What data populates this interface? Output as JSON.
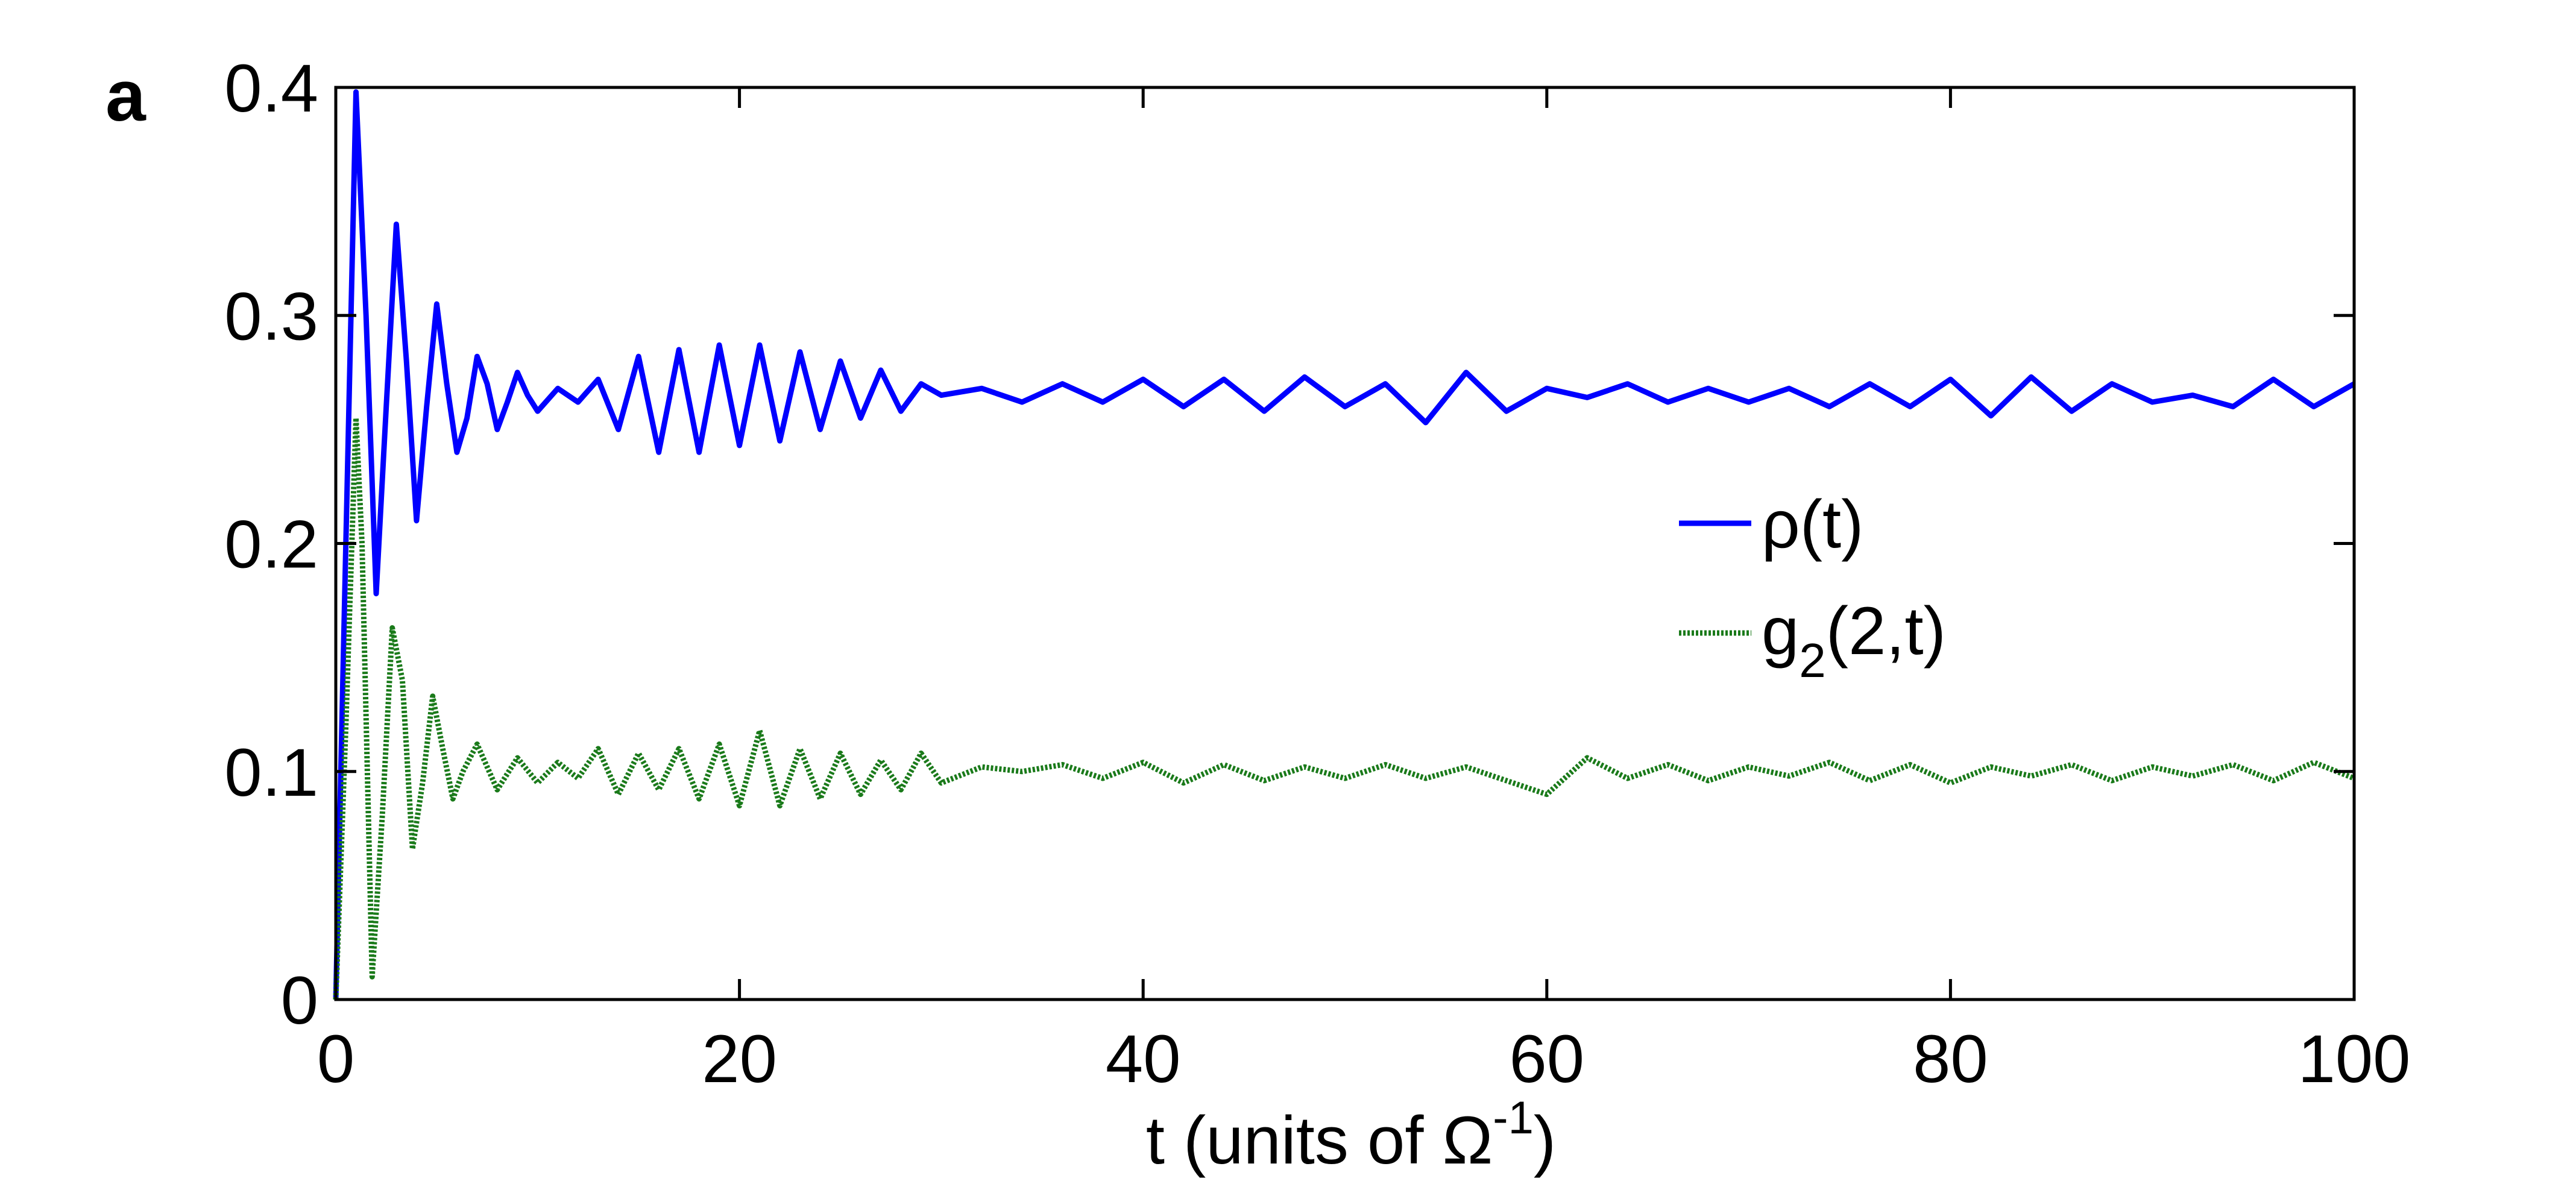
{
  "chart_data": {
    "type": "line",
    "panel_label": "a",
    "title": "",
    "xlabel": "t (units of Ω",
    "xlabel_sup": "-1",
    "xlabel_close": ")",
    "ylabel": "",
    "xlim": [
      0,
      100
    ],
    "ylim": [
      0,
      0.4
    ],
    "xticks": [
      0,
      20,
      40,
      60,
      80,
      100
    ],
    "xtick_labels": [
      "0",
      "20",
      "40",
      "60",
      "80",
      "100"
    ],
    "yticks": [
      0,
      0.1,
      0.2,
      0.3,
      0.4
    ],
    "ytick_labels": [
      "0",
      "0.1",
      "0.2",
      "0.3",
      "0.4"
    ],
    "grid": false,
    "legend_position": "right-center",
    "series": [
      {
        "name": "ρ(t)",
        "color": "#0000ff",
        "style": "solid",
        "x": [
          0,
          0.5,
          1.0,
          1.5,
          2.0,
          2.5,
          3.0,
          3.5,
          4.0,
          4.5,
          5.0,
          5.5,
          6.0,
          6.5,
          7.0,
          7.5,
          8.0,
          8.5,
          9.0,
          9.5,
          10,
          11,
          12,
          13,
          14,
          15,
          16,
          17,
          18,
          19,
          20,
          21,
          22,
          23,
          24,
          25,
          26,
          27,
          28,
          29,
          30,
          32,
          34,
          36,
          38,
          40,
          42,
          44,
          46,
          48,
          50,
          52,
          54,
          56,
          58,
          60,
          62,
          64,
          66,
          68,
          70,
          72,
          74,
          76,
          78,
          80,
          82,
          84,
          86,
          88,
          90,
          92,
          94,
          96,
          98,
          100
        ],
        "y": [
          0,
          0.2,
          0.398,
          0.3,
          0.178,
          0.26,
          0.34,
          0.28,
          0.21,
          0.26,
          0.305,
          0.27,
          0.24,
          0.255,
          0.282,
          0.27,
          0.25,
          0.262,
          0.275,
          0.265,
          0.258,
          0.268,
          0.262,
          0.272,
          0.25,
          0.282,
          0.24,
          0.285,
          0.24,
          0.287,
          0.243,
          0.287,
          0.245,
          0.284,
          0.25,
          0.28,
          0.255,
          0.276,
          0.258,
          0.27,
          0.265,
          0.268,
          0.262,
          0.27,
          0.262,
          0.272,
          0.26,
          0.272,
          0.258,
          0.273,
          0.26,
          0.27,
          0.253,
          0.275,
          0.258,
          0.268,
          0.264,
          0.27,
          0.262,
          0.268,
          0.262,
          0.268,
          0.26,
          0.27,
          0.26,
          0.272,
          0.256,
          0.273,
          0.258,
          0.27,
          0.262,
          0.265,
          0.26,
          0.272,
          0.26,
          0.27
        ]
      },
      {
        "name": "g",
        "name_sub": "2",
        "name_rest": "(2,t)",
        "color": "#1a7a1a",
        "style": "dotted",
        "x": [
          0,
          0.5,
          1.0,
          1.3,
          1.8,
          2.3,
          2.8,
          3.3,
          3.8,
          4.3,
          4.8,
          5.3,
          5.8,
          6.3,
          7,
          8,
          9,
          10,
          11,
          12,
          13,
          14,
          15,
          16,
          17,
          18,
          19,
          20,
          21,
          22,
          23,
          24,
          25,
          26,
          27,
          28,
          29,
          30,
          32,
          34,
          36,
          38,
          40,
          42,
          44,
          46,
          48,
          50,
          52,
          54,
          56,
          58,
          60,
          62,
          64,
          66,
          68,
          70,
          72,
          74,
          76,
          78,
          80,
          82,
          84,
          86,
          88,
          90,
          92,
          94,
          96,
          98,
          100
        ],
        "y": [
          0,
          0.12,
          0.255,
          0.2,
          0.01,
          0.08,
          0.163,
          0.14,
          0.066,
          0.095,
          0.133,
          0.11,
          0.088,
          0.1,
          0.112,
          0.092,
          0.106,
          0.095,
          0.104,
          0.097,
          0.11,
          0.09,
          0.108,
          0.092,
          0.11,
          0.088,
          0.112,
          0.085,
          0.118,
          0.085,
          0.11,
          0.088,
          0.108,
          0.09,
          0.105,
          0.092,
          0.108,
          0.095,
          0.102,
          0.1,
          0.103,
          0.097,
          0.104,
          0.095,
          0.103,
          0.096,
          0.102,
          0.097,
          0.103,
          0.097,
          0.102,
          0.096,
          0.09,
          0.106,
          0.097,
          0.103,
          0.096,
          0.102,
          0.098,
          0.104,
          0.096,
          0.103,
          0.095,
          0.102,
          0.098,
          0.103,
          0.096,
          0.102,
          0.098,
          0.103,
          0.096,
          0.104,
          0.097
        ]
      }
    ]
  }
}
